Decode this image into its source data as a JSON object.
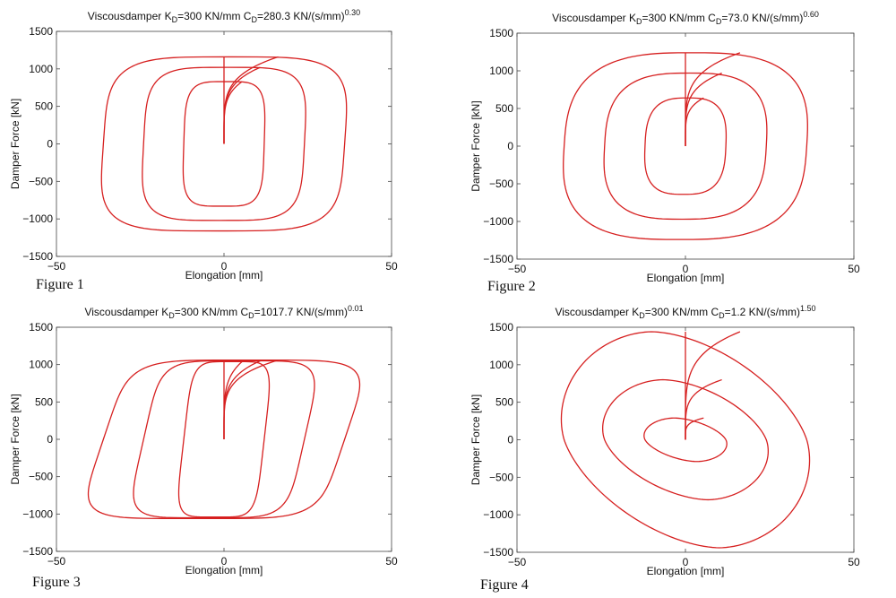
{
  "charts": [
    {
      "title": "Viscousdamper K",
      "title_sub": "D",
      "title_mid": "=300 KN/mm C",
      "title_sub2": "D",
      "title_tail": "=280.3 KN/(s/mm)",
      "title_sup": "0.30",
      "caption": "Figure 1",
      "xlabel": "Elongation [mm]",
      "ylabel": "Damper Force [kN]",
      "xticks": [
        "−50",
        "0",
        "50"
      ],
      "yticks": [
        "−1500",
        "−1000",
        "−500",
        "0",
        "500",
        "1000",
        "1500"
      ]
    },
    {
      "title": "Viscousdamper K",
      "title_sub": "D",
      "title_mid": "=300 KN/mm C",
      "title_sub2": "D",
      "title_tail": "=73.0 KN/(s/mm)",
      "title_sup": "0.60",
      "caption": "Figure 2",
      "xlabel": "Elongation [mm]",
      "ylabel": "Damper Force [kN]",
      "xticks": [
        "−50",
        "0",
        "50"
      ],
      "yticks": [
        "−1500",
        "−1000",
        "−500",
        "0",
        "500",
        "1000",
        "1500"
      ]
    },
    {
      "title": "Viscousdamper K",
      "title_sub": "D",
      "title_mid": "=300 KN/mm C",
      "title_sub2": "D",
      "title_tail": "=1017.7 KN/(s/mm)",
      "title_sup": "0.01",
      "caption": "Figure 3",
      "xlabel": "Elongation [mm]",
      "ylabel": "Damper Force [kN]",
      "xticks": [
        "−50",
        "0",
        "50"
      ],
      "yticks": [
        "−1500",
        "−1000",
        "−500",
        "0",
        "500",
        "1000",
        "1500"
      ]
    },
    {
      "title": "Viscousdamper K",
      "title_sub": "D",
      "title_mid": "=300 KN/mm C",
      "title_sub2": "D",
      "title_tail": "=1.2 KN/(s/mm)",
      "title_sup": "1.50",
      "caption": "Figure 4",
      "xlabel": "Elongation [mm]",
      "ylabel": "Damper Force [kN]",
      "xticks": [
        "−50",
        "0",
        "50"
      ],
      "yticks": [
        "−1500",
        "−1000",
        "−500",
        "0",
        "500",
        "1000",
        "1500"
      ]
    }
  ],
  "chart_data": [
    {
      "type": "line",
      "title": "Viscousdamper KD=300 KN/mm CD=280.3 KN/(s/mm)^0.30",
      "xlabel": "Elongation [mm]",
      "ylabel": "Damper Force [kN]",
      "xlim": [
        -50,
        50
      ],
      "ylim": [
        -1500,
        1500
      ],
      "grid": false,
      "color": "#d62020",
      "alpha": 0.3,
      "loops": [
        {
          "amplitude": 12,
          "force_max": 830
        },
        {
          "amplitude": 24,
          "force_max": 1020
        },
        {
          "amplitude": 36,
          "force_max": 1160
        }
      ]
    },
    {
      "type": "line",
      "title": "Viscousdamper KD=300 KN/mm CD=73.0 KN/(s/mm)^0.60",
      "xlabel": "Elongation [mm]",
      "ylabel": "Damper Force [kN]",
      "xlim": [
        -50,
        50
      ],
      "ylim": [
        -1500,
        1500
      ],
      "grid": false,
      "color": "#d62020",
      "alpha": 0.6,
      "loops": [
        {
          "amplitude": 12,
          "force_max": 640
        },
        {
          "amplitude": 24,
          "force_max": 970
        },
        {
          "amplitude": 36,
          "force_max": 1240
        }
      ]
    },
    {
      "type": "line",
      "title": "Viscousdamper KD=300 KN/mm CD=1017.7 KN/(s/mm)^0.01",
      "xlabel": "Elongation [mm]",
      "ylabel": "Damper Force [kN]",
      "xlim": [
        -50,
        50
      ],
      "ylim": [
        -1500,
        1500
      ],
      "grid": false,
      "color": "#d62020",
      "alpha": 0.01,
      "loops": [
        {
          "amplitude": 12,
          "force_max": 1040
        },
        {
          "amplitude": 24,
          "force_max": 1050
        },
        {
          "amplitude": 36,
          "force_max": 1060
        }
      ]
    },
    {
      "type": "line",
      "title": "Viscousdamper KD=300 KN/mm CD=1.2 KN/(s/mm)^1.50",
      "xlabel": "Elongation [mm]",
      "ylabel": "Damper Force [kN]",
      "xlim": [
        -50,
        50
      ],
      "ylim": [
        -1500,
        1500
      ],
      "grid": false,
      "color": "#d62020",
      "alpha": 1.5,
      "loops": [
        {
          "amplitude": 12,
          "force_max": 290
        },
        {
          "amplitude": 24,
          "force_max": 800
        },
        {
          "amplitude": 36,
          "force_max": 1440
        }
      ]
    }
  ]
}
